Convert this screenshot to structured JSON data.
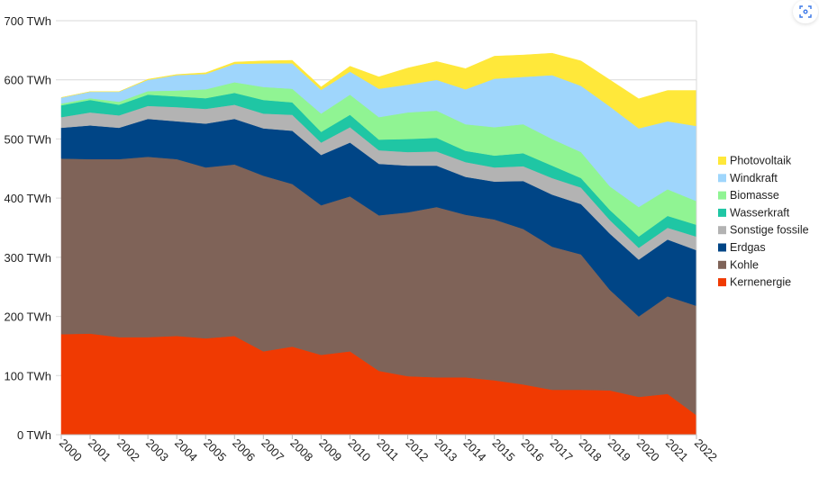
{
  "chart_data": {
    "type": "area",
    "stacked": true,
    "title": "",
    "xlabel": "",
    "ylabel": "",
    "ylim": [
      0,
      700
    ],
    "y_ticks": [
      0,
      100,
      200,
      300,
      400,
      500,
      600,
      700
    ],
    "y_tick_labels": [
      "0 TWh",
      "100 TWh",
      "200 TWh",
      "300 TWh",
      "400 TWh",
      "500 TWh",
      "600 TWh",
      "700 TWh"
    ],
    "grid": true,
    "legend_position": "right",
    "categories": [
      "2000",
      "2001",
      "2002",
      "2003",
      "2004",
      "2005",
      "2006",
      "2007",
      "2008",
      "2009",
      "2010",
      "2011",
      "2012",
      "2013",
      "2014",
      "2015",
      "2016",
      "2017",
      "2018",
      "2019",
      "2020",
      "2021",
      "2022"
    ],
    "series": [
      {
        "name": "Kernenergie",
        "color": "#f03a02",
        "values": [
          170,
          171,
          165,
          165,
          167,
          163,
          167,
          141,
          149,
          135,
          141,
          108,
          99,
          97,
          97,
          92,
          85,
          76,
          76,
          75,
          64,
          69,
          33
        ]
      },
      {
        "name": "Kohle",
        "color": "#7f6358",
        "values": [
          297,
          295,
          301,
          305,
          299,
          289,
          290,
          297,
          275,
          253,
          262,
          263,
          277,
          288,
          275,
          272,
          263,
          242,
          229,
          170,
          136,
          165,
          185
        ]
      },
      {
        "name": "Erdgas",
        "color": "#004586",
        "values": [
          52,
          57,
          53,
          64,
          64,
          74,
          77,
          80,
          90,
          85,
          91,
          87,
          79,
          70,
          64,
          64,
          81,
          88,
          85,
          95,
          96,
          96,
          94
        ]
      },
      {
        "name": "Sonstige fossile",
        "color": "#b3b3b3",
        "values": [
          18,
          22,
          21,
          22,
          24,
          25,
          24,
          25,
          27,
          21,
          26,
          23,
          23,
          24,
          25,
          24,
          25,
          28,
          28,
          23,
          20,
          20,
          23
        ]
      },
      {
        "name": "Wasserkraft",
        "color": "#1fc6a4",
        "values": [
          20,
          21,
          18,
          19,
          18,
          18,
          20,
          23,
          21,
          18,
          21,
          18,
          22,
          23,
          19,
          20,
          22,
          21,
          16,
          17,
          19,
          20,
          20
        ]
      },
      {
        "name": "Biomasse",
        "color": "#90f493",
        "values": [
          3,
          3,
          5,
          6,
          10,
          15,
          18,
          22,
          23,
          31,
          34,
          38,
          45,
          46,
          45,
          48,
          49,
          45,
          44,
          40,
          50,
          45,
          40
        ]
      },
      {
        "name": "Windkraft",
        "color": "#9fd6fc",
        "values": [
          10,
          11,
          17,
          19,
          26,
          26,
          31,
          40,
          43,
          40,
          39,
          48,
          47,
          52,
          59,
          82,
          80,
          108,
          112,
          135,
          133,
          115,
          127
        ]
      },
      {
        "name": "Photovoltaik",
        "color": "#ffe83a",
        "values": [
          0,
          0,
          0,
          1,
          1,
          2,
          3,
          4,
          5,
          5,
          9,
          20,
          28,
          31,
          35,
          38,
          37,
          37,
          42,
          45,
          50,
          52,
          60
        ]
      }
    ]
  },
  "toolbar": {
    "scan_icon": "scan-icon"
  }
}
